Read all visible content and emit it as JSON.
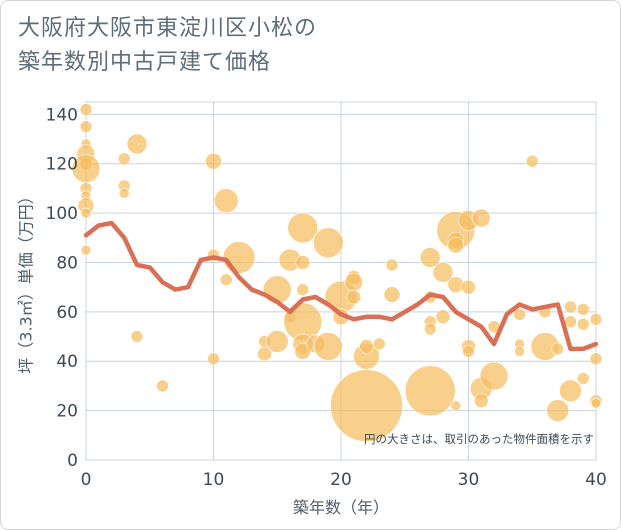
{
  "title": {
    "line1": "大阪府大阪市東淀川区小松の",
    "line2": "築年数別中古戸建て価格"
  },
  "colors": {
    "bubble": "#f5bc5e",
    "line": "#d96f55",
    "grid": "#c9d3db",
    "text": "#3d4b55"
  },
  "chart_data": {
    "type": "scatter",
    "xlabel": "築年数（年）",
    "ylabel": "坪（3.3㎡）単価（万円）",
    "xlim": [
      0,
      40
    ],
    "ylim": [
      0,
      145
    ],
    "x_ticks": [
      0,
      10,
      20,
      30,
      40
    ],
    "y_ticks": [
      0,
      20,
      40,
      60,
      80,
      100,
      120,
      140
    ],
    "grid": true,
    "note": "円の大きさは、取引のあった物件面積を示す",
    "bubbles": [
      {
        "x": 0,
        "y": 142,
        "r": 6
      },
      {
        "x": 0,
        "y": 135,
        "r": 6
      },
      {
        "x": 0,
        "y": 128,
        "r": 5
      },
      {
        "x": 0,
        "y": 124,
        "r": 9
      },
      {
        "x": 0,
        "y": 120,
        "r": 6
      },
      {
        "x": 0,
        "y": 118,
        "r": 14
      },
      {
        "x": 0,
        "y": 110,
        "r": 6
      },
      {
        "x": 0,
        "y": 107,
        "r": 5
      },
      {
        "x": 0,
        "y": 103,
        "r": 8
      },
      {
        "x": 0,
        "y": 100,
        "r": 5
      },
      {
        "x": 0,
        "y": 85,
        "r": 5
      },
      {
        "x": 3,
        "y": 122,
        "r": 6
      },
      {
        "x": 3,
        "y": 111,
        "r": 6
      },
      {
        "x": 3,
        "y": 108,
        "r": 5
      },
      {
        "x": 4,
        "y": 128,
        "r": 10
      },
      {
        "x": 4,
        "y": 50,
        "r": 6
      },
      {
        "x": 6,
        "y": 30,
        "r": 6
      },
      {
        "x": 10,
        "y": 121,
        "r": 8
      },
      {
        "x": 10,
        "y": 83,
        "r": 6
      },
      {
        "x": 10,
        "y": 41,
        "r": 6
      },
      {
        "x": 11,
        "y": 105,
        "r": 12
      },
      {
        "x": 11,
        "y": 73,
        "r": 6
      },
      {
        "x": 12,
        "y": 82,
        "r": 16
      },
      {
        "x": 14,
        "y": 43,
        "r": 7
      },
      {
        "x": 14,
        "y": 48,
        "r": 6
      },
      {
        "x": 15,
        "y": 48,
        "r": 11
      },
      {
        "x": 15,
        "y": 69,
        "r": 14
      },
      {
        "x": 16,
        "y": 81,
        "r": 11
      },
      {
        "x": 16,
        "y": 58,
        "r": 6
      },
      {
        "x": 17,
        "y": 94,
        "r": 15
      },
      {
        "x": 17,
        "y": 80,
        "r": 7
      },
      {
        "x": 17,
        "y": 69,
        "r": 6
      },
      {
        "x": 17,
        "y": 56,
        "r": 19
      },
      {
        "x": 17,
        "y": 47,
        "r": 10
      },
      {
        "x": 17,
        "y": 44,
        "r": 8
      },
      {
        "x": 18,
        "y": 47,
        "r": 9
      },
      {
        "x": 19,
        "y": 88,
        "r": 15
      },
      {
        "x": 19,
        "y": 46,
        "r": 14
      },
      {
        "x": 20,
        "y": 66,
        "r": 16
      },
      {
        "x": 20,
        "y": 58,
        "r": 8
      },
      {
        "x": 21,
        "y": 74,
        "r": 7
      },
      {
        "x": 21,
        "y": 72,
        "r": 9
      },
      {
        "x": 21,
        "y": 66,
        "r": 7
      },
      {
        "x": 22,
        "y": 42,
        "r": 13
      },
      {
        "x": 22,
        "y": 46,
        "r": 7
      },
      {
        "x": 22,
        "y": 22,
        "r": 36
      },
      {
        "x": 23,
        "y": 47,
        "r": 6
      },
      {
        "x": 24,
        "y": 79,
        "r": 6
      },
      {
        "x": 24,
        "y": 67,
        "r": 8
      },
      {
        "x": 27,
        "y": 82,
        "r": 10
      },
      {
        "x": 27,
        "y": 56,
        "r": 6
      },
      {
        "x": 27,
        "y": 53,
        "r": 6
      },
      {
        "x": 27,
        "y": 66,
        "r": 6
      },
      {
        "x": 27,
        "y": 28,
        "r": 25
      },
      {
        "x": 28,
        "y": 76,
        "r": 10
      },
      {
        "x": 28,
        "y": 58,
        "r": 7
      },
      {
        "x": 29,
        "y": 93,
        "r": 19
      },
      {
        "x": 29,
        "y": 89,
        "r": 8
      },
      {
        "x": 29,
        "y": 87,
        "r": 8
      },
      {
        "x": 29,
        "y": 71,
        "r": 8
      },
      {
        "x": 29,
        "y": 22,
        "r": 5
      },
      {
        "x": 30,
        "y": 97,
        "r": 10
      },
      {
        "x": 30,
        "y": 70,
        "r": 7
      },
      {
        "x": 30,
        "y": 46,
        "r": 7
      },
      {
        "x": 30,
        "y": 44,
        "r": 6
      },
      {
        "x": 31,
        "y": 98,
        "r": 9
      },
      {
        "x": 31,
        "y": 29,
        "r": 11
      },
      {
        "x": 31,
        "y": 24,
        "r": 7
      },
      {
        "x": 32,
        "y": 34,
        "r": 14
      },
      {
        "x": 32,
        "y": 54,
        "r": 6
      },
      {
        "x": 34,
        "y": 59,
        "r": 6
      },
      {
        "x": 34,
        "y": 47,
        "r": 5
      },
      {
        "x": 34,
        "y": 44,
        "r": 5
      },
      {
        "x": 35,
        "y": 121,
        "r": 6
      },
      {
        "x": 36,
        "y": 46,
        "r": 14
      },
      {
        "x": 36,
        "y": 60,
        "r": 6
      },
      {
        "x": 37,
        "y": 45,
        "r": 6
      },
      {
        "x": 37,
        "y": 20,
        "r": 11
      },
      {
        "x": 38,
        "y": 62,
        "r": 6
      },
      {
        "x": 38,
        "y": 56,
        "r": 6
      },
      {
        "x": 38,
        "y": 28,
        "r": 11
      },
      {
        "x": 39,
        "y": 61,
        "r": 6
      },
      {
        "x": 39,
        "y": 55,
        "r": 6
      },
      {
        "x": 39,
        "y": 33,
        "r": 6
      },
      {
        "x": 40,
        "y": 57,
        "r": 6
      },
      {
        "x": 40,
        "y": 41,
        "r": 6
      },
      {
        "x": 40,
        "y": 24,
        "r": 6
      },
      {
        "x": 40,
        "y": 23,
        "r": 5
      }
    ],
    "series": [
      {
        "x": [
          0,
          1,
          2,
          3,
          4,
          5,
          6,
          7,
          8,
          9,
          10,
          11,
          12,
          13,
          14,
          15,
          16,
          17,
          18,
          19,
          20,
          21,
          22,
          23,
          24,
          25,
          26,
          27,
          28,
          29,
          30,
          31,
          32,
          33,
          34,
          35,
          36,
          37,
          38,
          39,
          40
        ],
        "values": [
          91,
          95,
          96,
          90,
          79,
          78,
          72,
          69,
          70,
          81,
          82,
          81,
          74,
          69,
          67,
          64,
          60,
          65,
          66,
          63,
          59,
          57,
          58,
          58,
          57,
          60,
          63,
          67,
          66,
          60,
          57,
          54,
          47,
          59,
          63,
          61,
          62,
          63,
          45,
          45,
          47
        ]
      }
    ]
  }
}
